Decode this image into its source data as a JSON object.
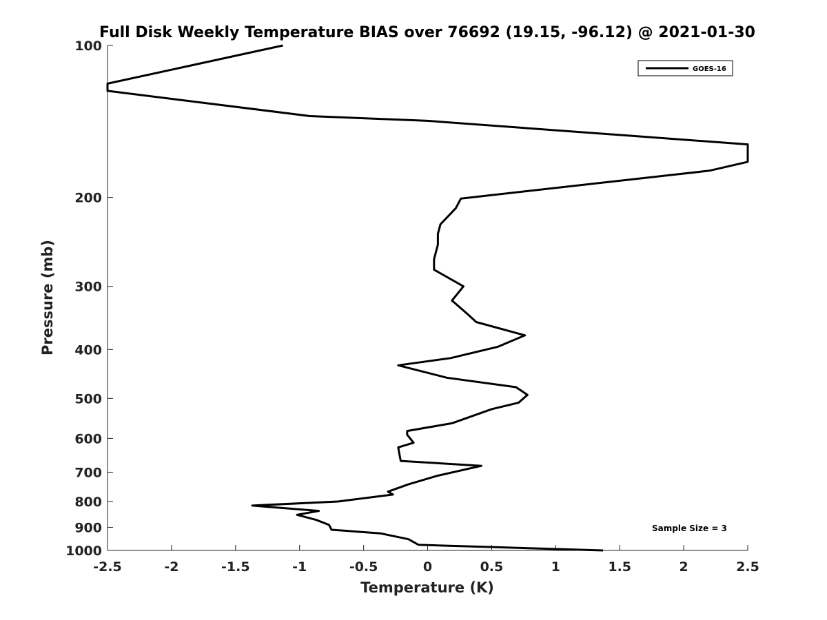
{
  "chart_data": {
    "type": "line",
    "title": "Full Disk Weekly Temperature BIAS over 76692 (19.15, -96.12) @ 2021-01-30",
    "xlabel": "Temperature (K)",
    "ylabel": "Pressure (mb)",
    "xlim": [
      -2.5,
      2.5
    ],
    "ylim": [
      1000,
      100
    ],
    "yscale": "log",
    "yreversed": true,
    "grid": false,
    "legend_position": "top-right",
    "x_ticks": [
      -2.5,
      -2,
      -1.5,
      -1,
      -0.5,
      0,
      0.5,
      1,
      1.5,
      2,
      2.5
    ],
    "x_tick_labels": [
      "-2.5",
      "-2",
      "-1.5",
      "-1",
      "-0.5",
      "0",
      "0.5",
      "1",
      "1.5",
      "2",
      "2.5"
    ],
    "y_ticks": [
      100,
      200,
      300,
      400,
      500,
      600,
      700,
      800,
      900,
      1000
    ],
    "y_tick_labels": [
      "100",
      "200",
      "300",
      "400",
      "500",
      "600",
      "700",
      "800",
      "900",
      "1000"
    ],
    "series": [
      {
        "name": "GOES-16",
        "color": "#000000",
        "points": [
          [
            1.37,
            1000
          ],
          [
            -0.07,
            975
          ],
          [
            -0.15,
            950
          ],
          [
            -0.37,
            925
          ],
          [
            -0.75,
            910
          ],
          [
            -0.77,
            890
          ],
          [
            -0.87,
            870
          ],
          [
            -1.02,
            850
          ],
          [
            -0.85,
            835
          ],
          [
            -1.37,
            815
          ],
          [
            -0.7,
            800
          ],
          [
            -0.27,
            775
          ],
          [
            -0.31,
            765
          ],
          [
            -0.15,
            740
          ],
          [
            0.07,
            712
          ],
          [
            0.42,
            680
          ],
          [
            -0.21,
            665
          ],
          [
            -0.22,
            645
          ],
          [
            -0.23,
            625
          ],
          [
            -0.11,
            612
          ],
          [
            -0.16,
            590
          ],
          [
            -0.16,
            580
          ],
          [
            0.19,
            560
          ],
          [
            0.5,
            525
          ],
          [
            0.71,
            510
          ],
          [
            0.78,
            492
          ],
          [
            0.69,
            475
          ],
          [
            0.15,
            455
          ],
          [
            -0.23,
            430
          ],
          [
            0.18,
            416
          ],
          [
            0.55,
            395
          ],
          [
            0.76,
            375
          ],
          [
            0.38,
            353
          ],
          [
            0.31,
            340
          ],
          [
            0.19,
            320
          ],
          [
            0.28,
            300
          ],
          [
            0.05,
            278
          ],
          [
            0.05,
            265
          ],
          [
            0.08,
            248
          ],
          [
            0.08,
            236
          ],
          [
            0.1,
            226
          ],
          [
            0.22,
            210
          ],
          [
            0.26,
            201
          ],
          [
            2.2,
            177
          ],
          [
            2.5,
            170
          ],
          [
            2.5,
            157
          ],
          [
            0.0,
            141
          ],
          [
            -0.92,
            138
          ],
          [
            -2.5,
            123
          ],
          [
            -2.5,
            119
          ],
          [
            -1.13,
            100
          ]
        ]
      }
    ],
    "legend": [
      "GOES-16"
    ],
    "annotations": [
      "Sample Size = 3"
    ]
  }
}
